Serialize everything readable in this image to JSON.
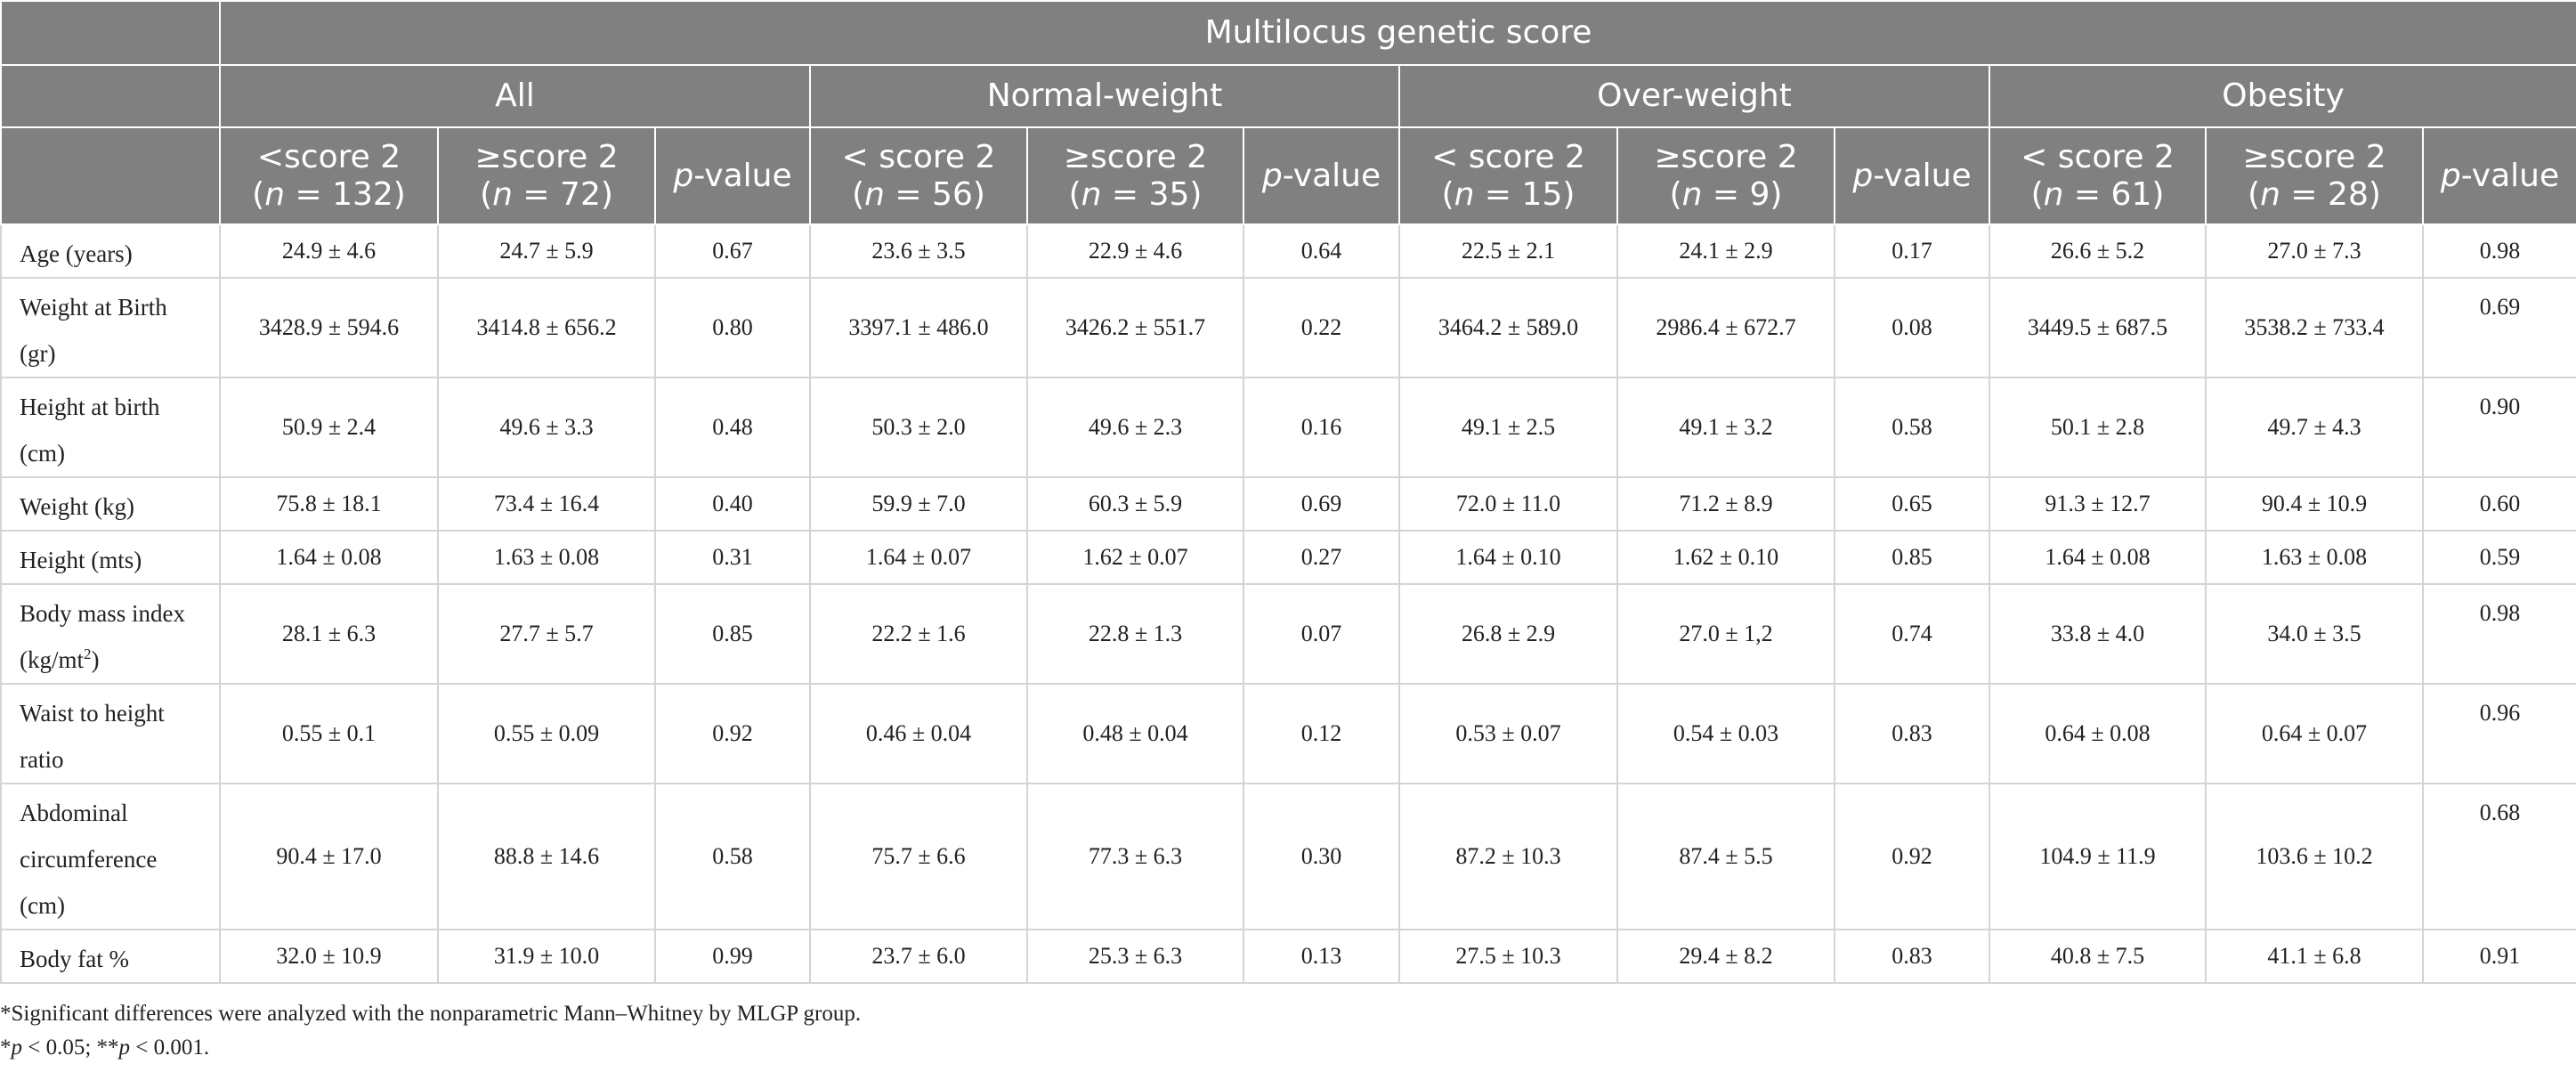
{
  "header": {
    "super": "Multilocus genetic score",
    "groups": [
      "All",
      "Normal-weight",
      "Over-weight",
      "Obesity"
    ],
    "sub": [
      {
        "a": "<score 2",
        "b": "(",
        "n": "n",
        "c": " = 132)"
      },
      {
        "a": "≥score 2",
        "b": "(",
        "n": "n",
        "c": " = 72)"
      },
      {
        "p": "p",
        "rest": "-value"
      },
      {
        "a": "< score 2",
        "b": "(",
        "n": "n",
        "c": " = 56)"
      },
      {
        "a": "≥score 2",
        "b": "(",
        "n": "n",
        "c": " = 35)"
      },
      {
        "p": "p",
        "rest": "-value"
      },
      {
        "a": "< score 2",
        "b": "(",
        "n": "n",
        "c": " = 15)"
      },
      {
        "a": "≥score 2",
        "b": "(",
        "n": "n",
        "c": " = 9)"
      },
      {
        "p": "p",
        "rest": "-value"
      },
      {
        "a": "< score 2",
        "b": "(",
        "n": "n",
        "c": " = 61)"
      },
      {
        "a": "≥score 2",
        "b": "(",
        "n": "n",
        "c": " = 28)"
      },
      {
        "p": "p",
        "rest": "-value"
      }
    ]
  },
  "rows": [
    {
      "label": [
        "Age (years)"
      ],
      "values": [
        "24.9 ± 4.6",
        "24.7 ± 5.9",
        "0.67",
        "23.6 ± 3.5",
        "22.9 ± 4.6",
        "0.64",
        "22.5 ± 2.1",
        "24.1 ± 2.9",
        "0.17",
        "26.6 ± 5.2",
        "27.0 ± 7.3",
        "0.98"
      ]
    },
    {
      "label": [
        "Weight at Birth",
        "(gr)"
      ],
      "values": [
        "3428.9 ± 594.6",
        "3414.8 ± 656.2",
        "0.80",
        "3397.1 ± 486.0",
        "3426.2 ± 551.7",
        "0.22",
        "3464.2 ± 589.0",
        "2986.4 ± 672.7",
        "0.08",
        "3449.5 ± 687.5",
        "3538.2 ± 733.4",
        "0.69"
      ]
    },
    {
      "label": [
        "Height at birth",
        "(cm)"
      ],
      "values": [
        "50.9 ± 2.4",
        "49.6 ± 3.3",
        "0.48",
        "50.3 ± 2.0",
        "49.6 ± 2.3",
        "0.16",
        "49.1 ± 2.5",
        "49.1 ± 3.2",
        "0.58",
        "50.1 ± 2.8",
        "49.7 ± 4.3",
        "0.90"
      ]
    },
    {
      "label": [
        "Weight (kg)"
      ],
      "values": [
        "75.8 ± 18.1",
        "73.4 ± 16.4",
        "0.40",
        "59.9 ± 7.0",
        "60.3 ± 5.9",
        "0.69",
        "72.0 ± 11.0",
        "71.2 ± 8.9",
        "0.65",
        "91.3 ± 12.7",
        "90.4 ± 10.9",
        "0.60"
      ]
    },
    {
      "label": [
        "Height (mts)"
      ],
      "values": [
        "1.64 ± 0.08",
        "1.63 ± 0.08",
        "0.31",
        "1.64 ± 0.07",
        "1.62 ± 0.07",
        "0.27",
        "1.64 ± 0.10",
        "1.62 ± 0.10",
        "0.85",
        "1.64 ± 0.08",
        "1.63 ± 0.08",
        "0.59"
      ]
    },
    {
      "label": [
        "Body mass index",
        "(kg/mt"
      ],
      "label_sup": "2",
      "label_tail": ")",
      "values": [
        "28.1 ± 6.3",
        "27.7 ± 5.7",
        "0.85",
        "22.2 ± 1.6",
        "22.8 ± 1.3",
        "0.07",
        "26.8 ± 2.9",
        "27.0 ± 1,2",
        "0.74",
        "33.8 ± 4.0",
        "34.0 ± 3.5",
        "0.98"
      ]
    },
    {
      "label": [
        "Waist to height",
        "ratio"
      ],
      "values": [
        "0.55 ± 0.1",
        "0.55 ± 0.09",
        "0.92",
        "0.46 ± 0.04",
        "0.48 ± 0.04",
        "0.12",
        "0.53 ± 0.07",
        "0.54 ± 0.03",
        "0.83",
        "0.64 ± 0.08",
        "0.64 ± 0.07",
        "0.96"
      ]
    },
    {
      "label": [
        "Abdominal",
        "circumference",
        "(cm)"
      ],
      "values": [
        "90.4 ± 17.0",
        "88.8 ± 14.6",
        "0.58",
        "75.7 ± 6.6",
        "77.3 ± 6.3",
        "0.30",
        "87.2 ± 10.3",
        "87.4 ± 5.5",
        "0.92",
        "104.9 ± 11.9",
        "103.6 ± 10.2",
        "0.68"
      ]
    },
    {
      "label": [
        "Body fat %"
      ],
      "values": [
        "32.0 ± 10.9",
        "31.9 ± 10.0",
        "0.99",
        "23.7 ± 6.0",
        "25.3 ± 6.3",
        "0.13",
        "27.5 ± 10.3",
        "29.4 ± 8.2",
        "0.83",
        "40.8 ± 7.5",
        "41.1 ± 6.8",
        "0.91"
      ]
    }
  ],
  "notes": {
    "line1": "*Significant differences were analyzed with the nonparametric Mann–Whitney by MLGP group.",
    "line2_a": "*",
    "line2_p1": "p",
    "line2_b": " < 0.05; **",
    "line2_p2": "p",
    "line2_c": " < 0.001."
  },
  "colors": {
    "header_bg": "#808080",
    "header_text": "#ffffff",
    "grid": "#d4d4d4"
  }
}
